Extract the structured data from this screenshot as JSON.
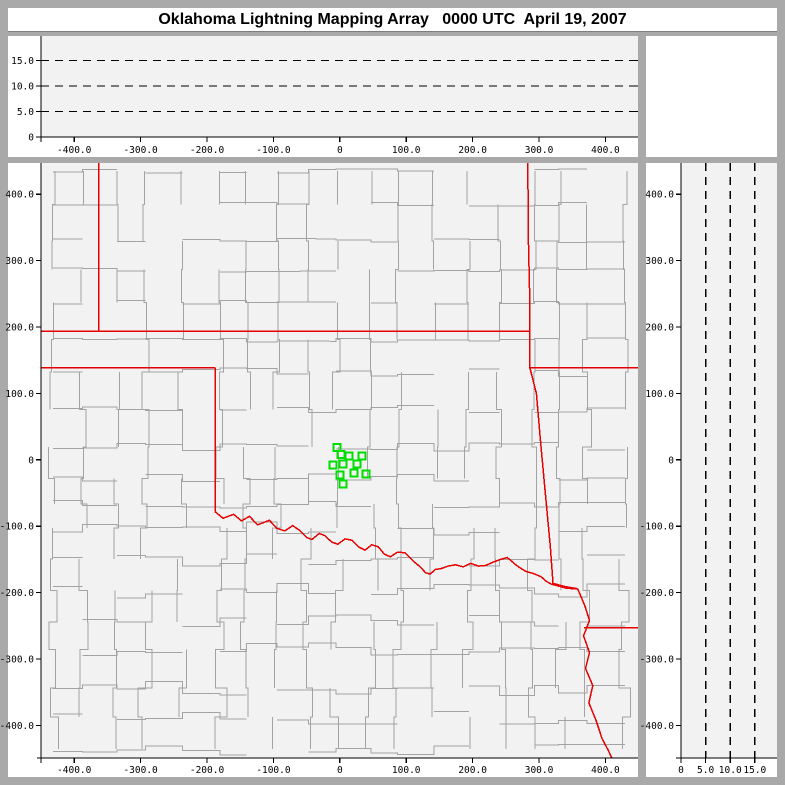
{
  "title": "Oklahoma Lightning Mapping Array   0000 UTC  April 19, 2007",
  "colors": {
    "frame": "#a9a9a9",
    "panel_bg": "#ffffff",
    "plot_bg": "#f2f2f2",
    "axis": "#000000",
    "county_line": "#a3a3a3",
    "state_line": "#e60000",
    "station": "#00dd00",
    "title_text": "#000000"
  },
  "chart_data": [
    {
      "id": "top_panel",
      "type": "scatter",
      "content": "altitude (km) vs east-west distance (km); no lightning sources plotted",
      "x_range": [
        -450,
        449
      ],
      "y_range": [
        0,
        19.8
      ],
      "x_tick_values": [
        -400,
        -300,
        -200,
        -100,
        0,
        100,
        200,
        300,
        400
      ],
      "x_tick_labels": [
        "-400.0",
        "-300.0",
        "-200.0",
        "-100.0",
        "0",
        "100.0",
        "200.0",
        "300.0",
        "400.0"
      ],
      "y_tick_values": [
        0,
        5,
        10,
        15
      ],
      "y_tick_labels": [
        "0",
        "5.0",
        "10.0",
        "15.0"
      ],
      "dashed_gridlines_y": [
        5,
        10,
        15
      ],
      "points": []
    },
    {
      "id": "main_panel",
      "type": "scatter",
      "content": "plan-view map with county lines, state borders and LMA station markers",
      "x_range": [
        -450,
        449
      ],
      "y_range": [
        -449,
        447
      ],
      "x_tick_values": [
        -400,
        -300,
        -200,
        -100,
        0,
        100,
        200,
        300,
        400
      ],
      "x_tick_labels": [
        "-400.0",
        "-300.0",
        "-200.0",
        "-100.0",
        "0",
        "100.0",
        "200.0",
        "300.0",
        "400.0"
      ],
      "y_tick_values": [
        400,
        300,
        200,
        100,
        0,
        -100,
        -200,
        -300,
        -400
      ],
      "y_tick_labels": [
        "400.0",
        "300.0",
        "200.0",
        "100.0",
        "0",
        "-100.0",
        "-200.0",
        "-300.0",
        "-400.0"
      ],
      "stations_km": [
        [
          -4.5,
          18.3
        ],
        [
          1.5,
          8.4
        ],
        [
          13.6,
          6.1
        ],
        [
          33.3,
          6.1
        ],
        [
          -10.6,
          -7.6
        ],
        [
          4.5,
          -6.1
        ],
        [
          25.8,
          -6.1
        ],
        [
          0.5,
          -22.9
        ],
        [
          21.2,
          -19.8
        ],
        [
          39.4,
          -21.4
        ],
        [
          4.5,
          -36.6
        ]
      ],
      "state_borders_km": [
        {
          "name": "west-vertical-border",
          "points": [
            [
              -363,
              447
            ],
            [
              -363,
              194
            ]
          ]
        },
        {
          "name": "north-37n-border",
          "points": [
            [
              -450,
              194
            ],
            [
              286,
              194
            ]
          ]
        },
        {
          "name": "east-vertical-border",
          "points": [
            [
              283,
              447
            ],
            [
              284,
              330
            ],
            [
              286,
              240
            ],
            [
              286,
              139
            ]
          ]
        },
        {
          "name": "east-36-5n-border",
          "points": [
            [
              286,
              139
            ],
            [
              452,
              139
            ]
          ]
        },
        {
          "name": "southeast-slant-border",
          "points": [
            [
              286,
              139
            ],
            [
              296,
              100
            ],
            [
              302,
              30
            ],
            [
              309,
              -45
            ],
            [
              317,
              -130
            ],
            [
              321,
              -186
            ],
            [
              340,
              -191
            ],
            [
              358,
              -194
            ]
          ]
        },
        {
          "name": "panhandle-south-border",
          "points": [
            [
              -450,
              139
            ],
            [
              -188,
              139
            ]
          ]
        },
        {
          "name": "100w-border",
          "points": [
            [
              -188,
              139
            ],
            [
              -188,
              -78
            ]
          ]
        },
        {
          "name": "red-river-border",
          "points": [
            [
              -188,
              -78
            ],
            [
              -176,
              -88
            ],
            [
              -160,
              -82
            ],
            [
              -148,
              -92
            ],
            [
              -136,
              -85
            ],
            [
              -124,
              -98
            ],
            [
              -106,
              -91
            ],
            [
              -95,
              -103
            ],
            [
              -83,
              -107
            ],
            [
              -71,
              -99
            ],
            [
              -61,
              -106
            ],
            [
              -50,
              -117
            ],
            [
              -42,
              -120
            ],
            [
              -31,
              -111
            ],
            [
              -23,
              -114
            ],
            [
              -12,
              -124
            ],
            [
              -3,
              -127
            ],
            [
              8,
              -119
            ],
            [
              18,
              -121
            ],
            [
              28,
              -131
            ],
            [
              38,
              -136
            ],
            [
              48,
              -128
            ],
            [
              58,
              -131
            ],
            [
              67,
              -142
            ],
            [
              76,
              -146
            ],
            [
              87,
              -139
            ],
            [
              98,
              -140
            ],
            [
              110,
              -152
            ],
            [
              121,
              -161
            ],
            [
              129,
              -170
            ],
            [
              136,
              -172
            ],
            [
              144,
              -165
            ],
            [
              152,
              -164
            ],
            [
              163,
              -160
            ],
            [
              174,
              -158
            ],
            [
              186,
              -161
            ],
            [
              197,
              -156
            ],
            [
              209,
              -160
            ],
            [
              220,
              -159
            ],
            [
              231,
              -154
            ],
            [
              242,
              -150
            ],
            [
              252,
              -147
            ],
            [
              258,
              -152
            ],
            [
              265,
              -158
            ],
            [
              272,
              -163
            ],
            [
              280,
              -168
            ],
            [
              291,
              -171
            ],
            [
              303,
              -176
            ],
            [
              311,
              -183
            ],
            [
              318,
              -187
            ],
            [
              329,
              -190
            ],
            [
              340,
              -193
            ],
            [
              350,
              -194
            ],
            [
              358,
              -194
            ]
          ]
        },
        {
          "name": "south-river-border",
          "points": [
            [
              358,
              -194
            ],
            [
              369,
              -220
            ],
            [
              376,
              -242
            ],
            [
              367,
              -265
            ],
            [
              376,
              -290
            ],
            [
              370,
              -314
            ],
            [
              381,
              -340
            ],
            [
              375,
              -366
            ],
            [
              386,
              -393
            ],
            [
              395,
              -420
            ],
            [
              404,
              -437
            ],
            [
              410,
              -450
            ]
          ]
        },
        {
          "name": "southeast-33n-border",
          "points": [
            [
              368,
              -253
            ],
            [
              452,
              -253
            ]
          ]
        }
      ],
      "counties_style": {
        "procedural": true,
        "seed": 20070419,
        "cell_km": 46,
        "skip_prob": 0.18,
        "jitter_km_north": 3.5,
        "jitter_km_mid": 7,
        "jitter_km_south": 11
      }
    },
    {
      "id": "right_panel",
      "type": "scatter",
      "content": "altitude (km) vs north-south distance (km); no lightning sources plotted",
      "x_range": [
        0,
        19.5
      ],
      "y_range": [
        -449,
        447
      ],
      "x_tick_values": [
        0,
        5,
        10,
        15
      ],
      "x_tick_labels": [
        "0",
        "5.0",
        "10.0",
        "15.0"
      ],
      "y_tick_values": [
        400,
        300,
        200,
        100,
        0,
        -100,
        -200,
        -300,
        -400
      ],
      "y_tick_labels": [
        "400.0",
        "300.0",
        "200.0",
        "100.0",
        "0",
        "-100.0",
        "-200.0",
        "-300.0",
        "-400.0"
      ],
      "dashed_gridlines_x": [
        5,
        10,
        15
      ],
      "points": []
    }
  ]
}
